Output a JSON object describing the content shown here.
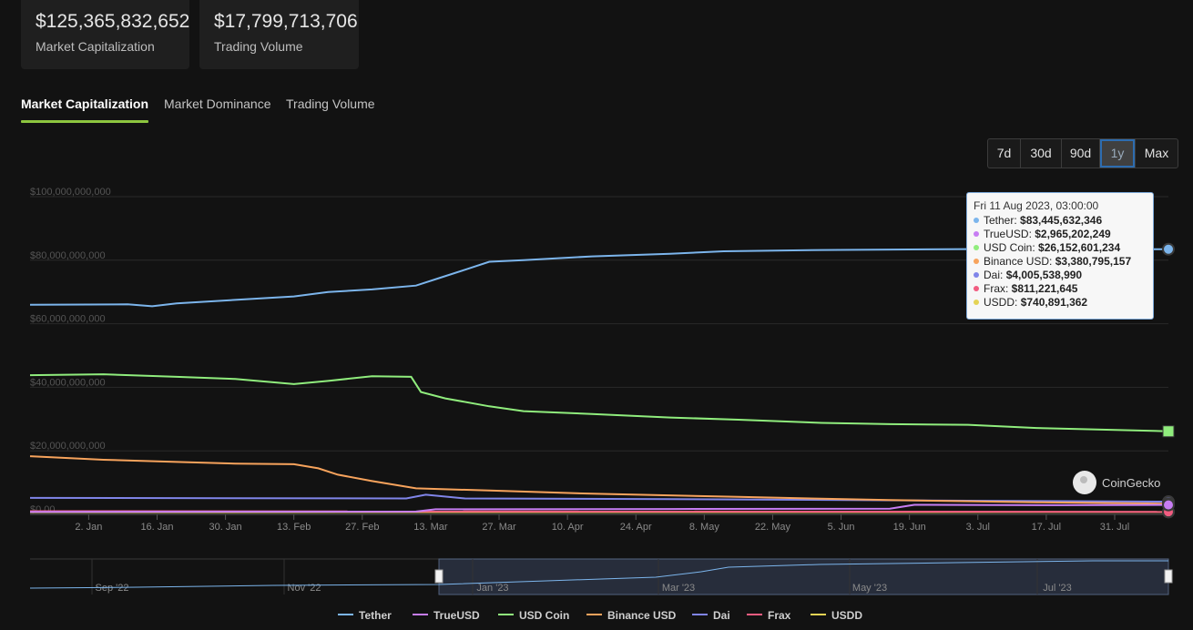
{
  "stats": {
    "market_cap": {
      "value": "$125,365,832,652",
      "label": "Market Capitalization"
    },
    "trading_volume": {
      "value": "$17,799,713,706",
      "label": "Trading Volume"
    }
  },
  "tabs": [
    {
      "label": "Market Capitalization",
      "active": true
    },
    {
      "label": "Market Dominance",
      "active": false
    },
    {
      "label": "Trading Volume",
      "active": false
    }
  ],
  "ranges": [
    {
      "label": "7d",
      "selected": false
    },
    {
      "label": "30d",
      "selected": false
    },
    {
      "label": "90d",
      "selected": false
    },
    {
      "label": "1y",
      "selected": true
    },
    {
      "label": "Max",
      "selected": false
    }
  ],
  "tooltip": {
    "header": "Fri 11 Aug 2023, 03:00:00",
    "rows": [
      {
        "name": "Tether",
        "value": "$83,445,632,346",
        "color": "#7cb5ec"
      },
      {
        "name": "TrueUSD",
        "value": "$2,965,202,249",
        "color": "#c77df3"
      },
      {
        "name": "USD Coin",
        "value": "$26,152,601,234",
        "color": "#90ed7d"
      },
      {
        "name": "Binance USD",
        "value": "$3,380,795,157",
        "color": "#f7a35c"
      },
      {
        "name": "Dai",
        "value": "$4,005,538,990",
        "color": "#8085e9"
      },
      {
        "name": "Frax",
        "value": "$811,221,645",
        "color": "#f15c80"
      },
      {
        "name": "USDD",
        "value": "$740,891,362",
        "color": "#e4d354"
      }
    ]
  },
  "brand": "CoinGecko",
  "chart_data": {
    "type": "line",
    "ylim": [
      0,
      100000000000
    ],
    "y_ticks": [
      "$0.00",
      "$20,000,000,000",
      "$40,000,000,000",
      "$60,000,000,000",
      "$80,000,000,000",
      "$100,000,000,000"
    ],
    "y_tick_values": [
      0,
      20000000000,
      40000000000,
      60000000000,
      80000000000,
      100000000000
    ],
    "x_range": [
      "2022-12-21",
      "2023-08-11"
    ],
    "x_ticks": [
      {
        "label": "2. Jan",
        "date": "2023-01-02"
      },
      {
        "label": "16. Jan",
        "date": "2023-01-16"
      },
      {
        "label": "30. Jan",
        "date": "2023-01-30"
      },
      {
        "label": "13. Feb",
        "date": "2023-02-13"
      },
      {
        "label": "27. Feb",
        "date": "2023-02-27"
      },
      {
        "label": "13. Mar",
        "date": "2023-03-13"
      },
      {
        "label": "27. Mar",
        "date": "2023-03-27"
      },
      {
        "label": "10. Apr",
        "date": "2023-04-10"
      },
      {
        "label": "24. Apr",
        "date": "2023-04-24"
      },
      {
        "label": "8. May",
        "date": "2023-05-08"
      },
      {
        "label": "22. May",
        "date": "2023-05-22"
      },
      {
        "label": "5. Jun",
        "date": "2023-06-05"
      },
      {
        "label": "19. Jun",
        "date": "2023-06-19"
      },
      {
        "label": "3. Jul",
        "date": "2023-07-03"
      },
      {
        "label": "17. Jul",
        "date": "2023-07-17"
      },
      {
        "label": "31. Jul",
        "date": "2023-07-31"
      }
    ],
    "series": [
      {
        "name": "Tether",
        "color": "#7cb5ec",
        "points": [
          [
            "2022-12-21",
            66.0
          ],
          [
            "2023-01-10",
            66.1
          ],
          [
            "2023-01-15",
            65.5
          ],
          [
            "2023-01-20",
            66.4
          ],
          [
            "2023-02-01",
            67.5
          ],
          [
            "2023-02-13",
            68.6
          ],
          [
            "2023-02-20",
            70.0
          ],
          [
            "2023-03-01",
            70.8
          ],
          [
            "2023-03-10",
            72.0
          ],
          [
            "2023-03-15",
            74.5
          ],
          [
            "2023-03-20",
            77.0
          ],
          [
            "2023-03-25",
            79.5
          ],
          [
            "2023-04-01",
            80.0
          ],
          [
            "2023-04-15",
            81.2
          ],
          [
            "2023-05-01",
            82.0
          ],
          [
            "2023-05-12",
            82.8
          ],
          [
            "2023-06-01",
            83.2
          ],
          [
            "2023-07-01",
            83.5
          ],
          [
            "2023-08-11",
            83.45
          ]
        ]
      },
      {
        "name": "TrueUSD",
        "color": "#c77df3",
        "points": [
          [
            "2022-12-21",
            0.8
          ],
          [
            "2023-03-10",
            0.9
          ],
          [
            "2023-03-14",
            1.6
          ],
          [
            "2023-05-01",
            1.7
          ],
          [
            "2023-06-15",
            1.8
          ],
          [
            "2023-06-20",
            3.0
          ],
          [
            "2023-07-20",
            2.9
          ],
          [
            "2023-08-11",
            2.97
          ]
        ]
      },
      {
        "name": "USD Coin",
        "color": "#90ed7d",
        "points": [
          [
            "2022-12-21",
            43.8
          ],
          [
            "2023-01-05",
            44.1
          ],
          [
            "2023-01-20",
            43.3
          ],
          [
            "2023-02-01",
            42.6
          ],
          [
            "2023-02-13",
            41.0
          ],
          [
            "2023-02-20",
            42.0
          ],
          [
            "2023-03-01",
            43.5
          ],
          [
            "2023-03-09",
            43.3
          ],
          [
            "2023-03-11",
            38.5
          ],
          [
            "2023-03-16",
            36.5
          ],
          [
            "2023-03-25",
            34.0
          ],
          [
            "2023-04-01",
            32.5
          ],
          [
            "2023-04-15",
            31.6
          ],
          [
            "2023-05-01",
            30.5
          ],
          [
            "2023-05-15",
            29.8
          ],
          [
            "2023-06-01",
            28.8
          ],
          [
            "2023-06-15",
            28.4
          ],
          [
            "2023-07-01",
            28.2
          ],
          [
            "2023-07-15",
            27.2
          ],
          [
            "2023-08-11",
            26.15
          ]
        ]
      },
      {
        "name": "Binance USD",
        "color": "#f7a35c",
        "points": [
          [
            "2022-12-21",
            18.3
          ],
          [
            "2023-01-05",
            17.2
          ],
          [
            "2023-01-20",
            16.5
          ],
          [
            "2023-02-01",
            16.0
          ],
          [
            "2023-02-13",
            15.8
          ],
          [
            "2023-02-18",
            14.5
          ],
          [
            "2023-02-22",
            12.5
          ],
          [
            "2023-03-01",
            10.5
          ],
          [
            "2023-03-10",
            8.2
          ],
          [
            "2023-03-25",
            7.5
          ],
          [
            "2023-04-15",
            6.5
          ],
          [
            "2023-05-15",
            5.5
          ],
          [
            "2023-06-15",
            4.5
          ],
          [
            "2023-07-15",
            3.8
          ],
          [
            "2023-08-11",
            3.38
          ]
        ]
      },
      {
        "name": "Dai",
        "color": "#8085e9",
        "points": [
          [
            "2022-12-21",
            5.2
          ],
          [
            "2023-03-08",
            5.0
          ],
          [
            "2023-03-12",
            6.2
          ],
          [
            "2023-03-20",
            5.0
          ],
          [
            "2023-05-01",
            4.8
          ],
          [
            "2023-07-01",
            4.3
          ],
          [
            "2023-08-11",
            4.0
          ]
        ]
      },
      {
        "name": "Frax",
        "color": "#f15c80",
        "points": [
          [
            "2022-12-21",
            1.0
          ],
          [
            "2023-08-11",
            0.81
          ]
        ]
      },
      {
        "name": "USDD",
        "color": "#e4d354",
        "points": [
          [
            "2022-12-21",
            0.7
          ],
          [
            "2023-08-11",
            0.74
          ]
        ]
      }
    ],
    "navigator": {
      "labels": [
        "Sep '22",
        "Nov '22",
        "Jan '23",
        "Mar '23",
        "May '23",
        "Jul '23"
      ]
    }
  }
}
